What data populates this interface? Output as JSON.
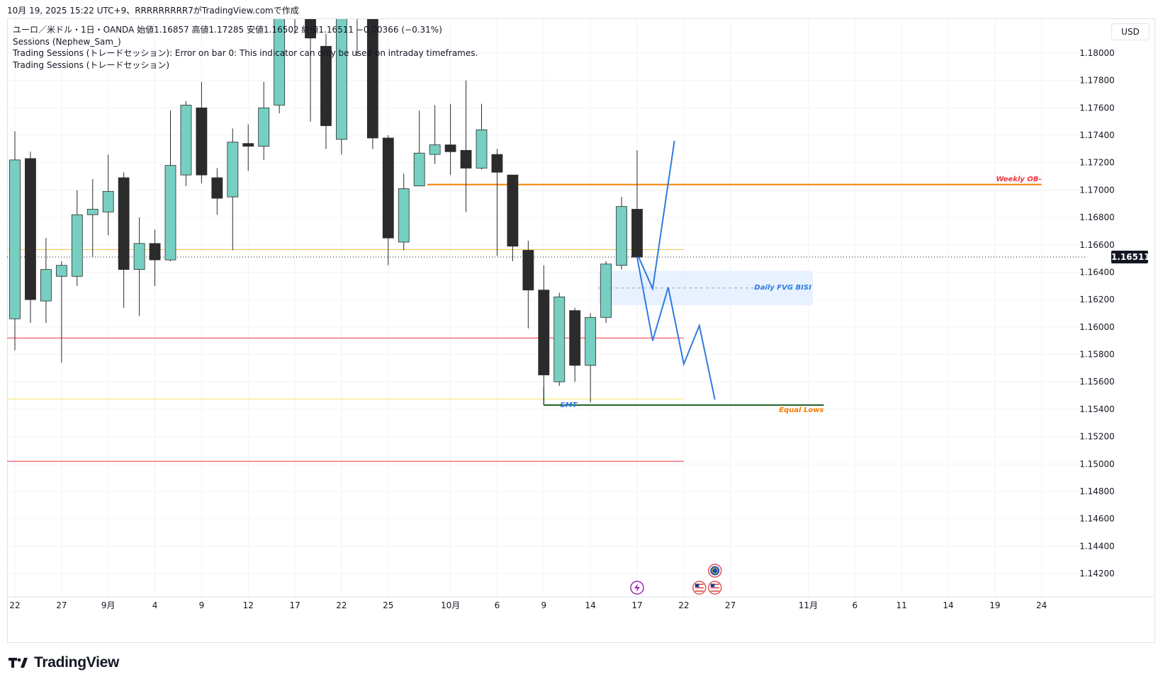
{
  "header": {
    "caption": "10月 19, 2025 15:22 UTC+9、RRRRRRRRR7がTradingView.comで作成"
  },
  "legend": {
    "symbol_line": "ユーロ／米ドル・1日・OANDA  始値1.16857  高値1.17285  安値1.16502  終値1.16511  −0.00366 (−0.31%)",
    "indicator_1": "Sessions (Nephew_Sam_)",
    "indicator_2": "Trading Sessions (トレードセッション): Error on bar 0: This indicator can only be used on intraday timeframes.",
    "indicator_3": "Trading Sessions (トレードセッション)"
  },
  "toolbar": {
    "currency": "USD"
  },
  "brand": {
    "name": "TradingView"
  },
  "colors": {
    "up": "#76cfc1",
    "down": "#2b2b2b",
    "orange": "#f57c00",
    "gold": "#f2c14e",
    "red": "#f23645",
    "yellow": "#f5e663",
    "green": "#1b5e20",
    "blue": "#2f7be0",
    "fvg_fill": "#e3efff",
    "axis_text": "#131722",
    "grid": "#f0f3fa"
  },
  "chart_data": {
    "type": "candlestick",
    "instrument": "ユーロ／米ドル",
    "timeframe": "1日",
    "source": "OANDA",
    "ylim": [
      1.1407,
      1.1869
    ],
    "y_ticks": [
      "1.18000",
      "1.17800",
      "1.17600",
      "1.17400",
      "1.17200",
      "1.17000",
      "1.16800",
      "1.16600",
      "1.16400",
      "1.16200",
      "1.16000",
      "1.15800",
      "1.15600",
      "1.15400",
      "1.15200",
      "1.15000",
      "1.14800",
      "1.14600",
      "1.14400",
      "1.14200"
    ],
    "last_price": "1.16511",
    "x_ticks": [
      {
        "i": 0,
        "label": "22"
      },
      {
        "i": 3,
        "label": "27"
      },
      {
        "i": 6,
        "label": "9月"
      },
      {
        "i": 9,
        "label": "4"
      },
      {
        "i": 12,
        "label": "9"
      },
      {
        "i": 15,
        "label": "12"
      },
      {
        "i": 18,
        "label": "17"
      },
      {
        "i": 21,
        "label": "22"
      },
      {
        "i": 24,
        "label": "25"
      },
      {
        "i": 28,
        "label": "10月"
      },
      {
        "i": 31,
        "label": "6"
      },
      {
        "i": 34,
        "label": "9"
      },
      {
        "i": 37,
        "label": "14"
      },
      {
        "i": 40,
        "label": "17"
      },
      {
        "i": 43,
        "label": "22"
      },
      {
        "i": 46,
        "label": "27"
      },
      {
        "i": 51,
        "label": "11月"
      },
      {
        "i": 54,
        "label": "6"
      },
      {
        "i": 57,
        "label": "11"
      },
      {
        "i": 60,
        "label": "14"
      },
      {
        "i": 63,
        "label": "19"
      },
      {
        "i": 66,
        "label": "24"
      }
    ],
    "candles": [
      {
        "o": 1.1606,
        "h": 1.1743,
        "l": 1.1583,
        "c": 1.1722
      },
      {
        "o": 1.1723,
        "h": 1.1728,
        "l": 1.1603,
        "c": 1.162
      },
      {
        "o": 1.1619,
        "h": 1.1665,
        "l": 1.1603,
        "c": 1.1642
      },
      {
        "o": 1.1637,
        "h": 1.1648,
        "l": 1.1574,
        "c": 1.1645
      },
      {
        "o": 1.1637,
        "h": 1.17,
        "l": 1.163,
        "c": 1.1682
      },
      {
        "o": 1.1682,
        "h": 1.1708,
        "l": 1.1651,
        "c": 1.1686
      },
      {
        "o": 1.1684,
        "h": 1.1726,
        "l": 1.1667,
        "c": 1.1699
      },
      {
        "o": 1.1709,
        "h": 1.1713,
        "l": 1.1614,
        "c": 1.1642
      },
      {
        "o": 1.1642,
        "h": 1.168,
        "l": 1.1608,
        "c": 1.1661
      },
      {
        "o": 1.1661,
        "h": 1.1671,
        "l": 1.163,
        "c": 1.1649
      },
      {
        "o": 1.1649,
        "h": 1.1758,
        "l": 1.1648,
        "c": 1.1718
      },
      {
        "o": 1.1711,
        "h": 1.1765,
        "l": 1.1703,
        "c": 1.1762
      },
      {
        "o": 1.176,
        "h": 1.1779,
        "l": 1.1705,
        "c": 1.1711
      },
      {
        "o": 1.1709,
        "h": 1.1716,
        "l": 1.1682,
        "c": 1.1694
      },
      {
        "o": 1.1695,
        "h": 1.1745,
        "l": 1.1656,
        "c": 1.1735
      },
      {
        "o": 1.1734,
        "h": 1.1748,
        "l": 1.1714,
        "c": 1.1732
      },
      {
        "o": 1.1732,
        "h": 1.1779,
        "l": 1.1722,
        "c": 1.176
      },
      {
        "o": 1.1762,
        "h": 1.187,
        "l": 1.1756,
        "c": 1.186
      },
      {
        "o": 1.186,
        "h": 1.187,
        "l": 1.1814,
        "c": 1.185
      },
      {
        "o": 1.185,
        "h": 1.187,
        "l": 1.175,
        "c": 1.1811
      },
      {
        "o": 1.1805,
        "h": 1.1814,
        "l": 1.173,
        "c": 1.1747
      },
      {
        "o": 1.1737,
        "h": 1.1847,
        "l": 1.1726,
        "c": 1.1837
      },
      {
        "o": 1.1862,
        "h": 1.187,
        "l": 1.1798,
        "c": 1.1855
      },
      {
        "o": 1.184,
        "h": 1.1866,
        "l": 1.173,
        "c": 1.1738
      },
      {
        "o": 1.1738,
        "h": 1.174,
        "l": 1.1645,
        "c": 1.1665
      },
      {
        "o": 1.1662,
        "h": 1.1712,
        "l": 1.1656,
        "c": 1.1701
      },
      {
        "o": 1.1703,
        "h": 1.1758,
        "l": 1.1703,
        "c": 1.1727
      },
      {
        "o": 1.1726,
        "h": 1.1762,
        "l": 1.1719,
        "c": 1.1733
      },
      {
        "o": 1.1733,
        "h": 1.1763,
        "l": 1.1711,
        "c": 1.1728
      },
      {
        "o": 1.1729,
        "h": 1.178,
        "l": 1.1684,
        "c": 1.1716
      },
      {
        "o": 1.1716,
        "h": 1.1763,
        "l": 1.1715,
        "c": 1.1744
      },
      {
        "o": 1.1726,
        "h": 1.173,
        "l": 1.1652,
        "c": 1.1713
      },
      {
        "o": 1.1711,
        "h": 1.1711,
        "l": 1.1648,
        "c": 1.1659
      },
      {
        "o": 1.1656,
        "h": 1.1663,
        "l": 1.1599,
        "c": 1.1627
      },
      {
        "o": 1.1627,
        "h": 1.1645,
        "l": 1.1556,
        "c": 1.1565
      },
      {
        "o": 1.156,
        "h": 1.1625,
        "l": 1.1557,
        "c": 1.1622
      },
      {
        "o": 1.1612,
        "h": 1.1614,
        "l": 1.156,
        "c": 1.1572
      },
      {
        "o": 1.1572,
        "h": 1.161,
        "l": 1.1545,
        "c": 1.1607
      },
      {
        "o": 1.1607,
        "h": 1.1648,
        "l": 1.1603,
        "c": 1.1646
      },
      {
        "o": 1.1645,
        "h": 1.1695,
        "l": 1.1642,
        "c": 1.1688
      },
      {
        "o": 1.1686,
        "h": 1.1729,
        "l": 1.165,
        "c": 1.1651
      }
    ],
    "lines": [
      {
        "id": "weekly-ob",
        "price": 1.1704,
        "from": 26.5,
        "to": 66,
        "color": "orange",
        "width": 2
      },
      {
        "id": "gold-level",
        "price": 1.16565,
        "from": -0.5,
        "to": 43,
        "color": "gold",
        "width": 1
      },
      {
        "id": "red-level-1",
        "price": 1.1592,
        "from": -0.5,
        "to": 43,
        "color": "red",
        "width": 1
      },
      {
        "id": "yellow-level",
        "price": 1.15475,
        "from": -0.5,
        "to": 43,
        "color": "yellow",
        "width": 1
      },
      {
        "id": "red-level-2",
        "price": 1.1502,
        "from": -0.5,
        "to": 43,
        "color": "red",
        "width": 1
      },
      {
        "id": "equal-lows",
        "price": 1.1543,
        "from": 34,
        "to": 52,
        "color": "green",
        "width": 2
      }
    ],
    "fvg": {
      "top": 1.1641,
      "bottom": 1.1616,
      "from": 37.5,
      "to": 51.3,
      "label": "Daily FVG BISI"
    },
    "annotations": [
      {
        "text": "Weekly OB-",
        "price": 1.1708,
        "x": 66,
        "color": "red",
        "anchor": "end"
      },
      {
        "text": "Daily FVG BISI",
        "price": 1.1629,
        "x": 51.2,
        "color": "blue",
        "anchor": "end"
      },
      {
        "text": "Equal Lows",
        "price": 1.15395,
        "x": 52,
        "color": "orange",
        "anchor": "end"
      },
      {
        "text": "SMT",
        "price": 1.1543,
        "x": 35.6,
        "color": "blue",
        "anchor": "middle"
      }
    ],
    "projection": {
      "color": "blue",
      "up_path": [
        [
          40.1,
          1.1651
        ],
        [
          41,
          1.1628
        ],
        [
          42.4,
          1.1736
        ]
      ],
      "down_path": [
        [
          40,
          1.1651
        ],
        [
          41,
          1.159
        ],
        [
          42,
          1.1629
        ],
        [
          43,
          1.1573
        ],
        [
          44,
          1.1601
        ],
        [
          45,
          1.1547
        ]
      ]
    },
    "event_markers": [
      {
        "x": 40,
        "icon": "lightning-icon"
      },
      {
        "x": 44,
        "icon": "us-flag-icon"
      },
      {
        "x": 45,
        "icon": "us-flag-icon"
      },
      {
        "x": 45,
        "icon": "eu-flag-icon"
      }
    ]
  }
}
